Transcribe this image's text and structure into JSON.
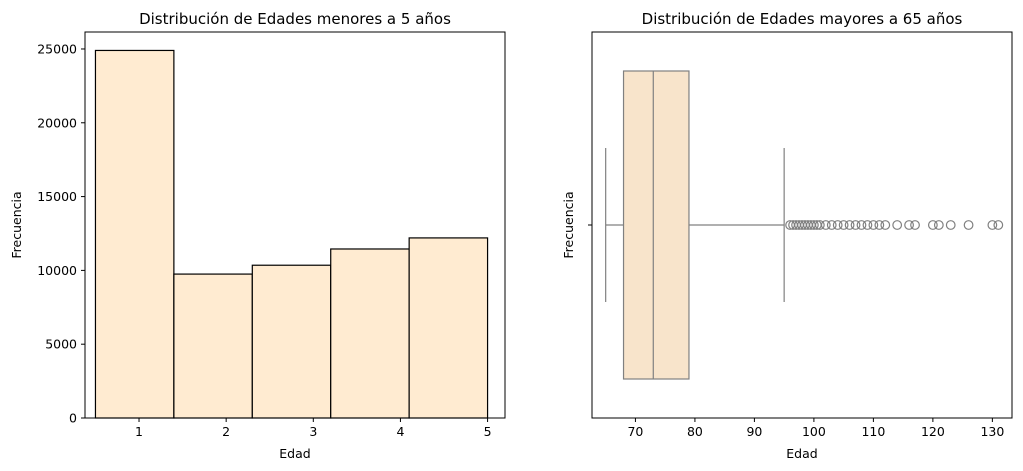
{
  "chart_data": [
    {
      "type": "bar",
      "title": "Distribución de Edades menores a 5 años",
      "xlabel": "Edad",
      "ylabel": "Frecuencia",
      "bins": [
        {
          "start": 0.5,
          "end": 1.4,
          "value": 24900
        },
        {
          "start": 1.4,
          "end": 2.3,
          "value": 9750
        },
        {
          "start": 2.3,
          "end": 3.2,
          "value": 10350
        },
        {
          "start": 3.2,
          "end": 4.1,
          "value": 11450
        },
        {
          "start": 4.1,
          "end": 5.0,
          "value": 12200
        }
      ],
      "xticks": [
        1,
        2,
        3,
        4,
        5
      ],
      "yticks": [
        0,
        5000,
        10000,
        15000,
        20000,
        25000
      ],
      "xlim": [
        0.38,
        5.2
      ],
      "ylim": [
        0,
        26150
      ],
      "fill_color": "#ffebd1",
      "edge_color": "#000000",
      "grid": false
    },
    {
      "type": "boxplot",
      "title": "Distribución de Edades mayores a 65 años",
      "xlabel": "Edad",
      "ylabel": "Frecuencia",
      "orientation": "horizontal",
      "whisker_low": 65,
      "q1": 68,
      "median": 73,
      "q3": 79,
      "whisker_high": 95,
      "outliers": [
        96,
        96.5,
        97,
        97.5,
        98,
        98.5,
        99,
        99.5,
        100,
        100.5,
        101,
        102,
        103,
        104,
        105,
        106,
        107,
        108,
        109,
        110,
        111,
        112,
        114,
        116,
        117,
        120,
        121,
        123,
        126,
        130,
        131
      ],
      "xticks": [
        70,
        80,
        90,
        100,
        110,
        120,
        130
      ],
      "xlim": [
        62.7,
        133.3
      ],
      "box_color": "#f8e4cb",
      "line_color": "#808080",
      "grid": false
    }
  ]
}
